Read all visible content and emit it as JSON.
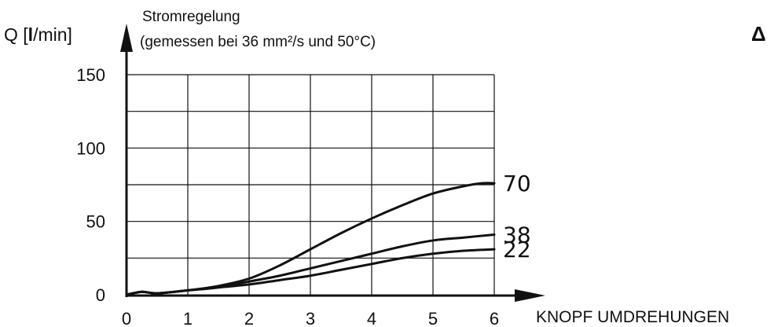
{
  "chart_data": {
    "type": "line",
    "title": "Stromregelung",
    "subtitle": "(gemessen bei 36 mm²/s und 50°C)",
    "ylabel_prefix": "Q [",
    "ylabel_bold": "l",
    "ylabel_suffix": "/min]",
    "xlabel": "KNOPF UMDREHUNGEN",
    "corner_symbol": "Δ",
    "xlim": [
      0,
      6
    ],
    "ylim": [
      0,
      150
    ],
    "x_ticks": [
      0,
      1,
      2,
      3,
      4,
      5,
      6
    ],
    "y_ticks": [
      0,
      50,
      100,
      150
    ],
    "x_tick_labels": [
      "0",
      "1",
      "2",
      "3",
      "4",
      "5",
      "6"
    ],
    "y_tick_labels": [
      "0",
      "50",
      "100",
      "150"
    ],
    "grid": true,
    "series": [
      {
        "name": "70",
        "x": [
          0,
          0.25,
          0.5,
          1,
          1.5,
          2,
          2.5,
          3,
          3.5,
          4,
          4.5,
          5,
          5.5,
          5.8,
          6
        ],
        "y": [
          0,
          2,
          1,
          3,
          6,
          11,
          20,
          31,
          42,
          52,
          61,
          69,
          74,
          76,
          76
        ]
      },
      {
        "name": "38",
        "x": [
          0,
          0.25,
          0.5,
          1,
          1.5,
          2,
          2.5,
          3,
          3.5,
          4,
          4.5,
          5,
          5.5,
          6
        ],
        "y": [
          0,
          2,
          1,
          3,
          5,
          9,
          13,
          18,
          23,
          28,
          33,
          37,
          39,
          41
        ]
      },
      {
        "name": "22",
        "x": [
          0,
          0.25,
          0.5,
          1,
          1.5,
          2,
          2.5,
          3,
          3.5,
          4,
          4.5,
          5,
          5.5,
          6
        ],
        "y": [
          0,
          2,
          1,
          3,
          5,
          7,
          10,
          13,
          17,
          21,
          25,
          28,
          30,
          31
        ]
      }
    ]
  }
}
